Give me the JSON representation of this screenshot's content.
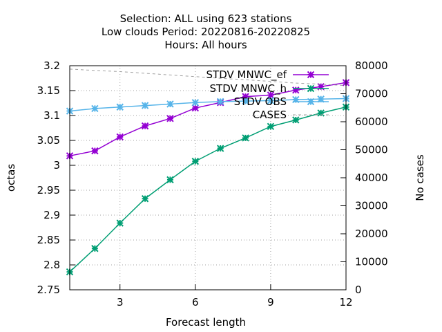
{
  "title_lines": [
    "Selection: ALL using   623 stations",
    "Low clouds   Period: 20220816-20220825",
    "Hours:  All hours"
  ],
  "colors": {
    "stdv_mnwc_ef": "#9400d3",
    "stdv_mnwc_h": "#009e73",
    "stdv_obs": "#56b4e9",
    "cases": "#a0a0a0",
    "grid": "#a0a0a0",
    "axis": "#000000"
  },
  "chart_data": {
    "type": "line",
    "title": "Selection: ALL using   623 stations / Low clouds   Period: 20220816-20220825 / Hours:  All hours",
    "xlabel": "Forecast length",
    "ylabel": "octas",
    "y2label": "No cases",
    "xlim": [
      1,
      12
    ],
    "ylim": [
      2.75,
      3.2
    ],
    "y2lim": [
      0,
      80000
    ],
    "xticks": [
      3,
      6,
      9,
      12
    ],
    "xtick_labels": [
      "3",
      "6",
      "9",
      "12"
    ],
    "yticks": [
      2.75,
      2.8,
      2.85,
      2.9,
      2.95,
      3.0,
      3.05,
      3.1,
      3.15,
      3.2
    ],
    "ytick_labels": [
      "2.75",
      "2.8",
      "2.85",
      "2.9",
      "2.95",
      "3",
      "3.05",
      "3.1",
      "3.15",
      "3.2"
    ],
    "y2ticks": [
      0,
      10000,
      20000,
      30000,
      40000,
      50000,
      60000,
      70000,
      80000
    ],
    "y2tick_labels": [
      "0",
      "10000",
      "20000",
      "30000",
      "40000",
      "50000",
      "60000",
      "70000",
      "80000"
    ],
    "grid": true,
    "legend_position": "top-right",
    "x": [
      1,
      2,
      3,
      4,
      5,
      6,
      7,
      8,
      9,
      10,
      11,
      12
    ],
    "series": [
      {
        "name": "STDV MNWC_ef",
        "color_key": "stdv_mnwc_ef",
        "axis": "y",
        "marker": "x",
        "values": [
          3.019,
          3.029,
          3.057,
          3.079,
          3.094,
          3.115,
          3.126,
          3.138,
          3.141,
          3.151,
          3.158,
          3.166
        ]
      },
      {
        "name": "STDV MNWC_h",
        "color_key": "stdv_mnwc_h",
        "axis": "y",
        "marker": "x",
        "values": [
          2.786,
          2.833,
          2.884,
          2.933,
          2.971,
          3.008,
          3.034,
          3.055,
          3.078,
          3.091,
          3.105,
          3.117
        ]
      },
      {
        "name": "STDV OBS",
        "color_key": "stdv_obs",
        "axis": "y",
        "marker": "x",
        "values": [
          3.109,
          3.114,
          3.117,
          3.12,
          3.123,
          3.126,
          3.128,
          3.129,
          3.13,
          3.132,
          3.133,
          3.134
        ]
      },
      {
        "name": "CASES",
        "color_key": "cases",
        "axis": "y2",
        "marker": "none",
        "dashed": true,
        "values": [
          78800,
          78300,
          77900,
          77300,
          76700,
          76100,
          75500,
          75000,
          74400,
          73800,
          73400,
          72900
        ]
      }
    ]
  }
}
